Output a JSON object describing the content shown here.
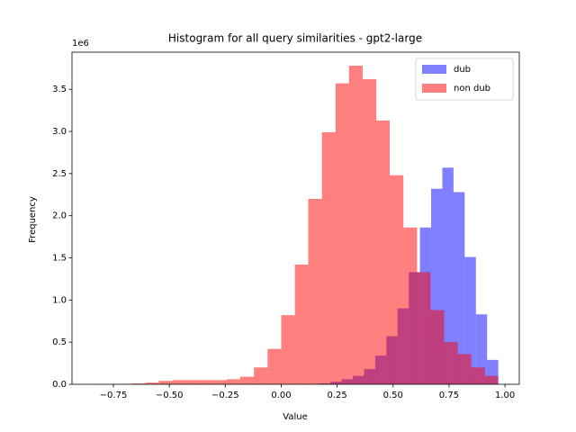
{
  "chart_data": {
    "type": "histogram",
    "title": "Histogram for all query similarities - gpt2-large",
    "xlabel": "Value",
    "ylabel": "Frequency",
    "y_offset_label": "1e6",
    "xlim": [
      -0.935,
      1.064
    ],
    "ylim": [
      0,
      3.94
    ],
    "xticks": [
      {
        "value": -0.75,
        "label": "−0.75"
      },
      {
        "value": -0.5,
        "label": "−0.50"
      },
      {
        "value": -0.25,
        "label": "−0.25"
      },
      {
        "value": 0,
        "label": "0.00"
      },
      {
        "value": 0.25,
        "label": "0.25"
      },
      {
        "value": 0.5,
        "label": "0.50"
      },
      {
        "value": 0.75,
        "label": "0.75"
      },
      {
        "value": 1,
        "label": "1.00"
      }
    ],
    "yticks": [
      {
        "value": 0,
        "label": "0.0"
      },
      {
        "value": 0.5,
        "label": "0.5"
      },
      {
        "value": 1,
        "label": "1.0"
      },
      {
        "value": 1.5,
        "label": "1.5"
      },
      {
        "value": 2,
        "label": "2.0"
      },
      {
        "value": 2.5,
        "label": "2.5"
      },
      {
        "value": 3,
        "label": "3.0"
      },
      {
        "value": 3.5,
        "label": "3.5"
      }
    ],
    "legend": "upper right",
    "opacity": 0.5,
    "series": [
      {
        "name": "dub",
        "color": "#0000ff",
        "bins": [
          -0.53,
          -0.48,
          -0.43,
          -0.38,
          -0.33,
          -0.28,
          -0.23,
          -0.18,
          -0.13,
          -0.08,
          -0.03,
          0.02,
          0.07,
          0.12,
          0.17,
          0.22,
          0.27,
          0.32,
          0.37,
          0.42,
          0.47,
          0.52,
          0.57,
          0.62,
          0.67,
          0.72,
          0.77,
          0.82,
          0.87,
          0.92,
          0.97
        ],
        "values": [
          0,
          0,
          0,
          0,
          0,
          0,
          0,
          0,
          0,
          0,
          0,
          0,
          0,
          0,
          0.01,
          0.03,
          0.06,
          0.1,
          0.18,
          0.34,
          0.57,
          0.9,
          1.33,
          1.86,
          2.32,
          2.57,
          2.28,
          1.51,
          0.83,
          0.29
        ]
      },
      {
        "name": "non dub",
        "color": "#ff0000",
        "bins": [
          -0.85,
          -0.789,
          -0.729,
          -0.668,
          -0.607,
          -0.547,
          -0.486,
          -0.425,
          -0.365,
          -0.304,
          -0.243,
          -0.183,
          -0.122,
          -0.061,
          0.0,
          0.061,
          0.121,
          0.182,
          0.243,
          0.303,
          0.364,
          0.425,
          0.485,
          0.546,
          0.607,
          0.667,
          0.728,
          0.789,
          0.849,
          0.91,
          0.97
        ],
        "values": [
          0.001,
          0.002,
          0.005,
          0.01,
          0.02,
          0.04,
          0.05,
          0.05,
          0.05,
          0.05,
          0.06,
          0.09,
          0.2,
          0.42,
          0.82,
          1.42,
          2.2,
          2.99,
          3.57,
          3.78,
          3.62,
          3.13,
          2.48,
          1.86,
          1.33,
          0.88,
          0.5,
          0.36,
          0.2,
          0.1
        ]
      }
    ]
  }
}
